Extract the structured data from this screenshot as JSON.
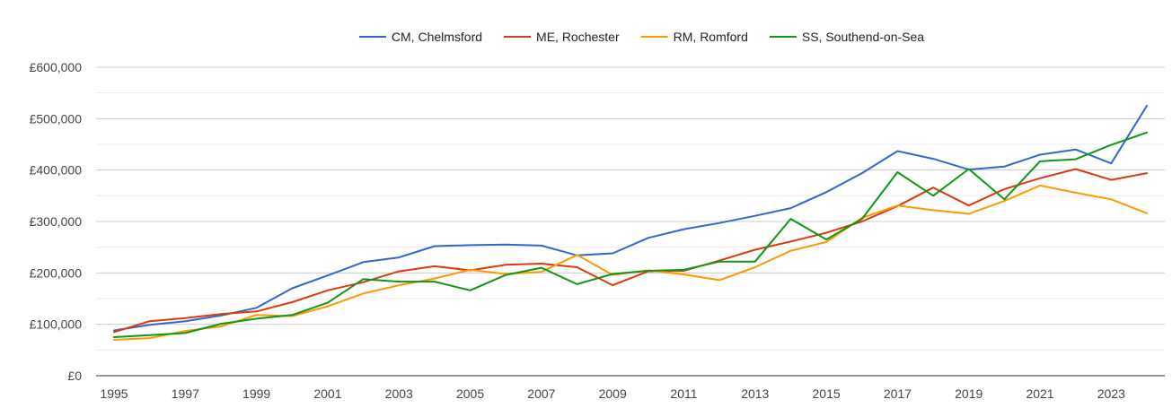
{
  "chart_data": {
    "type": "line",
    "title": "",
    "xlabel": "",
    "ylabel": "",
    "x": [
      1995,
      1996,
      1997,
      1998,
      1999,
      2000,
      2001,
      2002,
      2003,
      2004,
      2005,
      2006,
      2007,
      2008,
      2009,
      2010,
      2011,
      2012,
      2013,
      2014,
      2015,
      2016,
      2017,
      2018,
      2019,
      2020,
      2021,
      2022,
      2023,
      2024
    ],
    "x_tick_labels": [
      "1995",
      "1997",
      "1999",
      "2001",
      "2003",
      "2005",
      "2007",
      "2009",
      "2011",
      "2013",
      "2015",
      "2017",
      "2019",
      "2021",
      "2023"
    ],
    "y_ticks": [
      0,
      100000,
      200000,
      300000,
      400000,
      500000,
      600000
    ],
    "y_tick_labels": [
      "£0",
      "£100,000",
      "£200,000",
      "£300,000",
      "£400,000",
      "£500,000",
      "£600,000"
    ],
    "ylim": [
      0,
      600000
    ],
    "grid": true,
    "legend_position": "top",
    "series": [
      {
        "name": "CM, Chelmsford",
        "color": "#3366cc",
        "values": [
          88000,
          99000,
          106000,
          117000,
          132000,
          170000,
          195000,
          221000,
          230000,
          252000,
          254000,
          255000,
          253000,
          234000,
          238000,
          268000,
          285000,
          297000,
          311000,
          326000,
          357000,
          394000,
          437000,
          422000,
          401000,
          407000,
          430000,
          440000,
          413000,
          525000
        ]
      },
      {
        "name": "ME, Rochester",
        "color": "#dc3912",
        "values": [
          85000,
          106000,
          112000,
          120000,
          125000,
          143000,
          166000,
          182000,
          203000,
          213000,
          205000,
          216000,
          218000,
          211000,
          176000,
          203000,
          204000,
          224000,
          245000,
          261000,
          278000,
          300000,
          330000,
          366000,
          331000,
          363000,
          384000,
          402000,
          381000,
          394000
        ]
      },
      {
        "name": "RM, Romford",
        "color": "#ff9900",
        "values": [
          70000,
          73000,
          87000,
          96000,
          118000,
          116000,
          135000,
          160000,
          176000,
          189000,
          206000,
          198000,
          202000,
          235000,
          196000,
          205000,
          197000,
          186000,
          211000,
          243000,
          260000,
          307000,
          331000,
          322000,
          315000,
          340000,
          370000,
          356000,
          343000,
          316000
        ]
      },
      {
        "name": "SS, Southend-on-Sea",
        "color": "#109618",
        "values": [
          75000,
          79000,
          83000,
          101000,
          111000,
          118000,
          142000,
          188000,
          183000,
          183000,
          166000,
          196000,
          210000,
          178000,
          198000,
          204000,
          206000,
          222000,
          222000,
          305000,
          265000,
          305000,
          396000,
          350000,
          402000,
          343000,
          417000,
          421000,
          449000,
          473000
        ]
      }
    ]
  }
}
